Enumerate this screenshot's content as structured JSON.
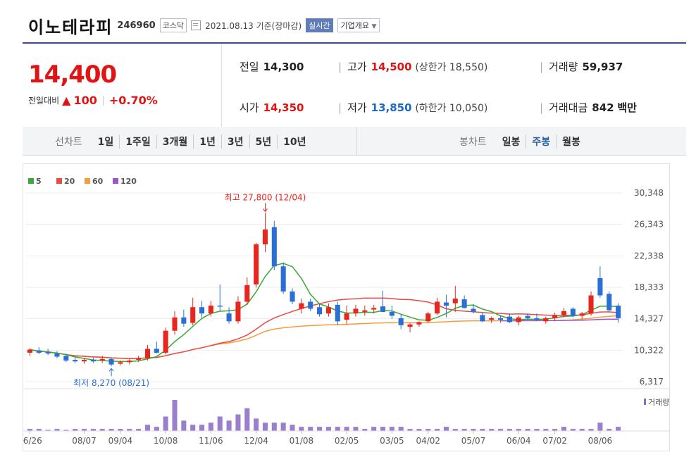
{
  "header": {
    "name": "이노테라피",
    "code": "246960",
    "market": "코스닥",
    "date": "2021.08.13 기준(장마감)",
    "realtime": "실시간",
    "overview": "기업개요"
  },
  "quote": {
    "price": "14,400",
    "compare_label": "전일대비",
    "change": "100",
    "change_pct": "+0.70%",
    "prev_label": "전일",
    "prev": "14,300",
    "open_label": "시가",
    "open": "14,350",
    "high_label": "고가",
    "high": "14,500",
    "upper_limit": "(상한가 18,550)",
    "low_label": "저가",
    "low": "13,850",
    "lower_limit": "(하한가 10,050)",
    "volume_label": "거래량",
    "volume": "59,937",
    "amount_label": "거래대금",
    "amount": "842",
    "amount_unit": "백만"
  },
  "periods": {
    "line_label": "선차트",
    "line_items": [
      "1일",
      "1주일",
      "3개월",
      "1년",
      "3년",
      "5년",
      "10년"
    ],
    "candle_label": "봉차트",
    "candle_items": [
      "일봉",
      "주봉",
      "월봉"
    ],
    "candle_active": "주봉"
  },
  "chart_data": {
    "type": "candlestick",
    "legend": [
      {
        "name": "5",
        "color": "#3aa935"
      },
      {
        "name": "20",
        "color": "#e84a45"
      },
      {
        "name": "60",
        "color": "#f59b3c"
      },
      {
        "name": "120",
        "color": "#9955cc"
      }
    ],
    "y_ticks": [
      "30,348",
      "26,343",
      "22,338",
      "18,333",
      "14,327",
      "10,322",
      "6,317"
    ],
    "ylim": [
      6317,
      30348
    ],
    "x_ticks": [
      "06/26",
      "08/07",
      "09/04",
      "10/08",
      "11/06",
      "12/04",
      "01/08",
      "02/05",
      "03/05",
      "04/02",
      "05/07",
      "06/04",
      "07/02",
      "08/06"
    ],
    "annotations": {
      "max": "최고 27,800 (12/04)",
      "min": "최저 8,270 (08/21)"
    },
    "volume_label": "거래량",
    "candles": [
      {
        "o": 10000,
        "h": 10600,
        "l": 9600,
        "c": 10400
      },
      {
        "o": 10300,
        "h": 10700,
        "l": 9800,
        "c": 10000
      },
      {
        "o": 10100,
        "h": 10500,
        "l": 9700,
        "c": 9900
      },
      {
        "o": 9900,
        "h": 10200,
        "l": 9300,
        "c": 9500
      },
      {
        "o": 9600,
        "h": 9900,
        "l": 8800,
        "c": 9000
      },
      {
        "o": 9100,
        "h": 9400,
        "l": 8700,
        "c": 8900
      },
      {
        "o": 8900,
        "h": 9300,
        "l": 8600,
        "c": 9100
      },
      {
        "o": 9100,
        "h": 9400,
        "l": 8700,
        "c": 8900
      },
      {
        "o": 9000,
        "h": 9600,
        "l": 8700,
        "c": 9200
      },
      {
        "o": 9200,
        "h": 9400,
        "l": 8270,
        "c": 8500
      },
      {
        "o": 8600,
        "h": 9000,
        "l": 8400,
        "c": 8800
      },
      {
        "o": 8800,
        "h": 9200,
        "l": 8500,
        "c": 9000
      },
      {
        "o": 9100,
        "h": 9600,
        "l": 8800,
        "c": 9300
      },
      {
        "o": 9300,
        "h": 11000,
        "l": 9000,
        "c": 10500
      },
      {
        "o": 10500,
        "h": 11400,
        "l": 9900,
        "c": 10000
      },
      {
        "o": 10000,
        "h": 13200,
        "l": 9800,
        "c": 12800
      },
      {
        "o": 12800,
        "h": 15300,
        "l": 12300,
        "c": 14500
      },
      {
        "o": 14500,
        "h": 15500,
        "l": 13300,
        "c": 13700
      },
      {
        "o": 13800,
        "h": 17000,
        "l": 13500,
        "c": 15800
      },
      {
        "o": 15800,
        "h": 16600,
        "l": 14500,
        "c": 15000
      },
      {
        "o": 15000,
        "h": 16600,
        "l": 14600,
        "c": 16000
      },
      {
        "o": 16000,
        "h": 18700,
        "l": 15300,
        "c": 15900
      },
      {
        "o": 15000,
        "h": 15800,
        "l": 13700,
        "c": 14000
      },
      {
        "o": 14000,
        "h": 17200,
        "l": 13700,
        "c": 16500
      },
      {
        "o": 16500,
        "h": 19600,
        "l": 16100,
        "c": 18600
      },
      {
        "o": 18700,
        "h": 24000,
        "l": 18300,
        "c": 23800
      },
      {
        "o": 23800,
        "h": 27800,
        "l": 22800,
        "c": 25700
      },
      {
        "o": 26000,
        "h": 26800,
        "l": 20500,
        "c": 21000
      },
      {
        "o": 21000,
        "h": 21500,
        "l": 17500,
        "c": 17800
      },
      {
        "o": 17800,
        "h": 18200,
        "l": 16200,
        "c": 16500
      },
      {
        "o": 15600,
        "h": 16900,
        "l": 15000,
        "c": 16300
      },
      {
        "o": 16500,
        "h": 16900,
        "l": 15300,
        "c": 15600
      },
      {
        "o": 15800,
        "h": 16200,
        "l": 14600,
        "c": 14900
      },
      {
        "o": 15000,
        "h": 16300,
        "l": 14600,
        "c": 15800
      },
      {
        "o": 16100,
        "h": 16500,
        "l": 13500,
        "c": 14000
      },
      {
        "o": 14200,
        "h": 16000,
        "l": 13600,
        "c": 15000
      },
      {
        "o": 15000,
        "h": 16100,
        "l": 14600,
        "c": 15600
      },
      {
        "o": 15200,
        "h": 16000,
        "l": 14700,
        "c": 15400
      },
      {
        "o": 15500,
        "h": 16100,
        "l": 15000,
        "c": 15700
      },
      {
        "o": 15900,
        "h": 17900,
        "l": 15400,
        "c": 15200
      },
      {
        "o": 15200,
        "h": 16000,
        "l": 14300,
        "c": 14700
      },
      {
        "o": 14400,
        "h": 14900,
        "l": 13000,
        "c": 13500
      },
      {
        "o": 13300,
        "h": 13800,
        "l": 12600,
        "c": 13600
      },
      {
        "o": 13600,
        "h": 14000,
        "l": 13300,
        "c": 13900
      },
      {
        "o": 14000,
        "h": 15200,
        "l": 13800,
        "c": 15000
      },
      {
        "o": 15000,
        "h": 17000,
        "l": 14800,
        "c": 16500
      },
      {
        "o": 16400,
        "h": 17400,
        "l": 14500,
        "c": 16000
      },
      {
        "o": 16300,
        "h": 18500,
        "l": 15200,
        "c": 16900
      },
      {
        "o": 16800,
        "h": 17300,
        "l": 15600,
        "c": 15700
      },
      {
        "o": 15600,
        "h": 16200,
        "l": 15000,
        "c": 15200
      },
      {
        "o": 14800,
        "h": 15200,
        "l": 13900,
        "c": 14000
      },
      {
        "o": 14200,
        "h": 14600,
        "l": 13800,
        "c": 14400
      },
      {
        "o": 14400,
        "h": 14800,
        "l": 13800,
        "c": 14200
      },
      {
        "o": 14600,
        "h": 15000,
        "l": 13800,
        "c": 13900
      },
      {
        "o": 13900,
        "h": 14700,
        "l": 13500,
        "c": 14500
      },
      {
        "o": 14700,
        "h": 15000,
        "l": 14200,
        "c": 14400
      },
      {
        "o": 14400,
        "h": 15000,
        "l": 14100,
        "c": 14200
      },
      {
        "o": 14000,
        "h": 14600,
        "l": 13700,
        "c": 14400
      },
      {
        "o": 14400,
        "h": 15100,
        "l": 14000,
        "c": 14800
      },
      {
        "o": 14800,
        "h": 15700,
        "l": 14500,
        "c": 15300
      },
      {
        "o": 15600,
        "h": 15800,
        "l": 14500,
        "c": 14700
      },
      {
        "o": 14700,
        "h": 15200,
        "l": 14300,
        "c": 15000
      },
      {
        "o": 15000,
        "h": 17800,
        "l": 14700,
        "c": 17300
      },
      {
        "o": 19500,
        "h": 21000,
        "l": 17000,
        "c": 17300
      },
      {
        "o": 17500,
        "h": 17800,
        "l": 15300,
        "c": 15400
      },
      {
        "o": 16000,
        "h": 16300,
        "l": 13850,
        "c": 14400
      }
    ],
    "volumes": [
      1,
      1,
      0,
      1,
      0,
      1,
      1,
      1,
      1,
      1,
      1,
      1,
      1,
      3,
      2,
      7,
      15,
      5,
      3,
      3,
      4,
      7,
      5,
      8,
      11,
      6,
      4,
      4,
      4,
      3,
      2,
      2,
      2,
      2,
      2,
      2,
      2,
      1,
      2,
      2,
      2,
      2,
      1,
      1,
      1,
      1,
      2,
      1,
      1,
      1,
      1,
      1,
      1,
      1,
      1,
      1,
      1,
      1,
      1,
      2,
      1,
      1,
      1,
      4,
      1,
      2
    ]
  }
}
